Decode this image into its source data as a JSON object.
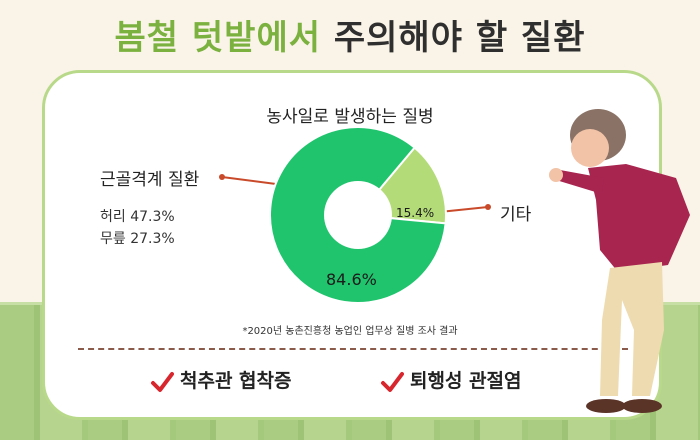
{
  "headline": {
    "green": "봄철 텃밭에서",
    "dark": "주의해야 할 질환"
  },
  "chart_data": {
    "type": "pie",
    "title": "농사일로 발생하는 질병",
    "slices": [
      {
        "label": "근골격계 질환",
        "value": 84.6,
        "display": "84.6%",
        "color": "#1fc46d"
      },
      {
        "label": "기타",
        "value": 15.4,
        "display": "15.4%",
        "color": "#b3dc78"
      }
    ],
    "breakdown": [
      {
        "text": "허리 47.3%"
      },
      {
        "text": "무릎 27.3%"
      }
    ],
    "source": "*2020년 농촌진흥청 농업인 업무상 질병 조사 결과",
    "donut": true
  },
  "bottom": [
    {
      "text": "척추관 협착증"
    },
    {
      "text": "퇴행성 관절염"
    }
  ],
  "colors": {
    "accent_green": "#7bb13f",
    "check": "#d8262e",
    "leader": "#c94a2a"
  }
}
